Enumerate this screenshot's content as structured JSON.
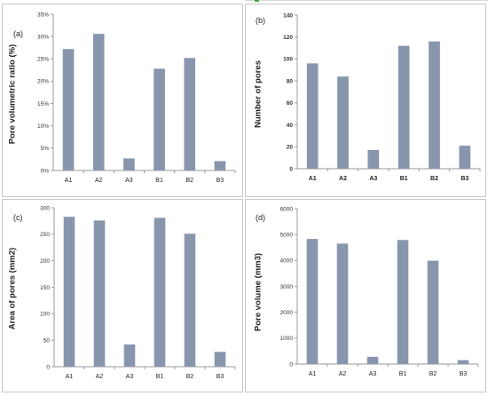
{
  "accent_color": "#8896ad",
  "panels": [
    {
      "label": "(a)",
      "chart_data": {
        "type": "bar",
        "categories": [
          "A1",
          "A2",
          "A3",
          "B1",
          "B2",
          "B3"
        ],
        "values": [
          27.2,
          30.6,
          2.7,
          22.8,
          25.2,
          2.1
        ],
        "xlabel": "",
        "ylabel": "Pore volumetric ratio (%)",
        "ylim": [
          0,
          35
        ],
        "yticks": [
          0,
          5,
          10,
          15,
          20,
          25,
          30,
          35
        ],
        "ytick_labels": [
          "0%",
          "5%",
          "10%",
          "15%",
          "20%",
          "25%",
          "30%",
          "35%"
        ],
        "grid": false,
        "bar_color": "#8896ad"
      }
    },
    {
      "label": "(b)",
      "chart_data": {
        "type": "bar",
        "categories": [
          "A1",
          "A2",
          "A3",
          "B1",
          "B2",
          "B3"
        ],
        "values": [
          96,
          84,
          17,
          112,
          116,
          21
        ],
        "xlabel": "",
        "ylabel": "Number of pores",
        "ylim": [
          0,
          140
        ],
        "yticks": [
          0,
          20,
          40,
          60,
          80,
          100,
          120,
          140
        ],
        "ytick_labels": [
          "0",
          "20",
          "40",
          "60",
          "80",
          "100",
          "120",
          "140"
        ],
        "grid": false,
        "bar_color": "#8896ad"
      }
    },
    {
      "label": "(c)",
      "chart_data": {
        "type": "bar",
        "categories": [
          "A1",
          "A2",
          "A3",
          "B1",
          "B2",
          "B3"
        ],
        "values": [
          283,
          276,
          42,
          281,
          251,
          28
        ],
        "xlabel": "",
        "ylabel": "Area of pores (mm2)",
        "ylim": [
          0,
          300
        ],
        "yticks": [
          0,
          50,
          100,
          150,
          200,
          250,
          300
        ],
        "ytick_labels": [
          "0",
          "50",
          "100",
          "150",
          "200",
          "250",
          "300"
        ],
        "grid": false,
        "bar_color": "#8896ad"
      }
    },
    {
      "label": "(d)",
      "chart_data": {
        "type": "bar",
        "categories": [
          "A1",
          "A2",
          "A3",
          "B1",
          "B2",
          "B3"
        ],
        "values": [
          4830,
          4650,
          280,
          4790,
          3990,
          150
        ],
        "xlabel": "",
        "ylabel": "Pore volume (mm3)",
        "ylim": [
          0,
          6000
        ],
        "yticks": [
          0,
          1000,
          2000,
          3000,
          4000,
          5000,
          6000
        ],
        "ytick_labels": [
          "0",
          "1000",
          "2000",
          "3000",
          "4000",
          "5000",
          "6000"
        ],
        "grid": false,
        "bar_color": "#8896ad"
      }
    }
  ]
}
